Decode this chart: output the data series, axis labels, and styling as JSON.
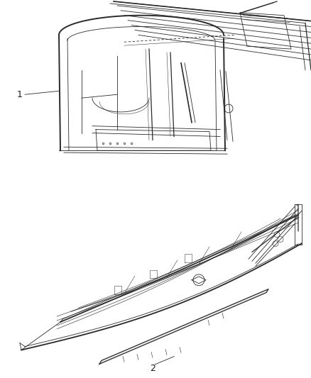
{
  "background_color": "#ffffff",
  "line_color": "#2a2a2a",
  "label_color": "#1a1a1a",
  "fig_width": 4.38,
  "fig_height": 5.33,
  "dpi": 100,
  "label1_text": "1",
  "label2_text": "2"
}
